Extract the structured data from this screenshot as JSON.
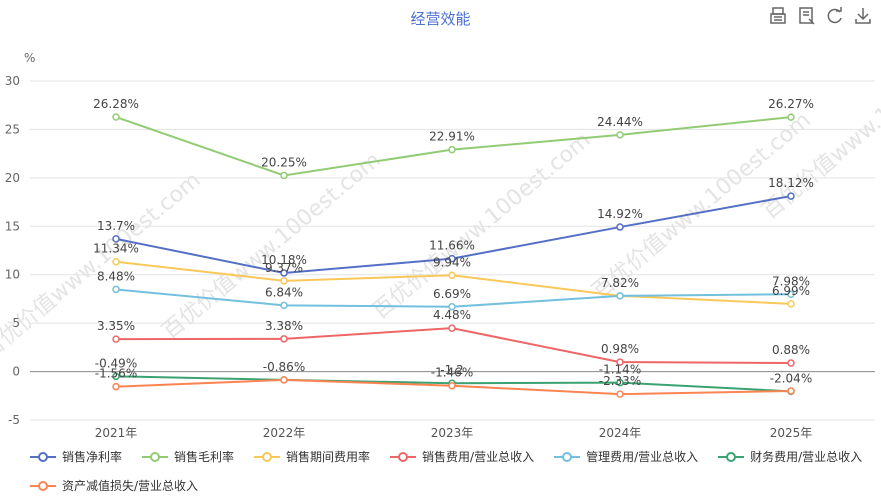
{
  "title": "经营效能",
  "toolbox": [
    {
      "name": "data-view-icon"
    },
    {
      "name": "table-view-icon"
    },
    {
      "name": "restore-icon"
    },
    {
      "name": "save-image-icon"
    }
  ],
  "watermark": "百优价值www.100est.com",
  "chart_data": {
    "type": "line",
    "categories": [
      "2021年",
      "2022年",
      "2023年",
      "2024年",
      "2025年"
    ],
    "ylabel": "%",
    "ylim": [
      -5,
      30
    ],
    "yticks": [
      "-5",
      "0",
      "5",
      "10",
      "15",
      "20",
      "25",
      "30"
    ],
    "grid": true,
    "legend_position": "bottom",
    "series": [
      {
        "name": "销售净利率",
        "color": "#5470c6",
        "values": [
          13.7,
          10.18,
          11.66,
          14.92,
          18.12
        ],
        "labels": [
          "13.7%",
          "10.18%",
          "11.66%",
          "14.92%",
          "18.12%"
        ]
      },
      {
        "name": "销售毛利率",
        "color": "#91cc75",
        "values": [
          26.28,
          20.25,
          22.91,
          24.44,
          26.27
        ],
        "labels": [
          "26.28%",
          "20.25%",
          "22.91%",
          "24.44%",
          "26.27%"
        ]
      },
      {
        "name": "销售期间费用率",
        "color": "#fac858",
        "values": [
          11.34,
          9.37,
          9.94,
          7.82,
          6.99
        ],
        "labels": [
          "11.34%",
          "9.37%",
          "9.94%",
          "7.82%",
          "6.99%"
        ]
      },
      {
        "name": "销售费用/营业总收入",
        "color": "#ee6666",
        "values": [
          3.35,
          3.38,
          4.48,
          0.98,
          0.88
        ],
        "labels": [
          "3.35%",
          "3.38%",
          "4.48%",
          "0.98%",
          "0.88%"
        ]
      },
      {
        "name": "管理费用/营业总收入",
        "color": "#73c0de",
        "values": [
          8.48,
          6.84,
          6.69,
          7.82,
          7.98
        ],
        "labels": [
          "8.48%",
          "6.84%",
          "6.69%",
          "",
          "7.98%"
        ]
      },
      {
        "name": "财务费用/营业总收入",
        "color": "#3ba272",
        "values": [
          -0.49,
          -0.86,
          -1.2,
          -1.14,
          -2.04
        ],
        "labels": [
          "-0.49%",
          "-0.86%",
          "-1.2",
          "-1.14%",
          "-2.04%"
        ]
      },
      {
        "name": "资产减值损失/营业总收入",
        "color": "#fc8452",
        "values": [
          -1.56,
          -0.86,
          -1.46,
          -2.33,
          -2.0
        ],
        "labels": [
          "-1.56%",
          "",
          "-1.46%",
          "-2.33%",
          ""
        ]
      }
    ]
  }
}
